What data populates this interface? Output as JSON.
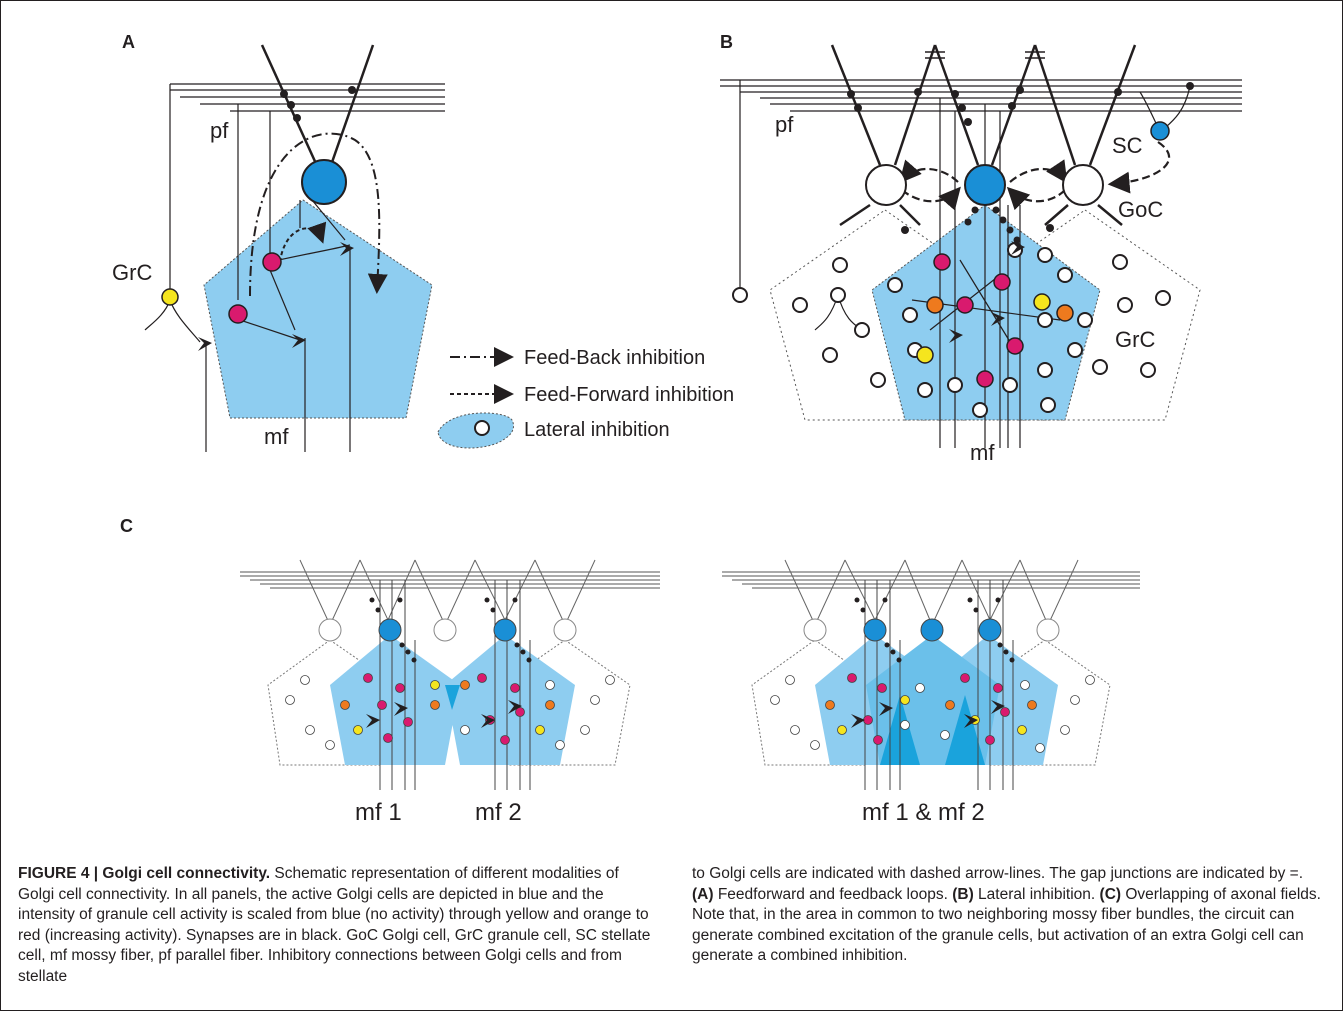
{
  "figure": {
    "panels": [
      "A",
      "B",
      "C"
    ],
    "panel_a": {
      "pf": "pf",
      "grc": "GrC",
      "mf": "mf"
    },
    "panel_b": {
      "pf": "pf",
      "sc": "SC",
      "goc": "GoC",
      "grc": "GrC",
      "mf": "mf"
    },
    "panel_c": {
      "left_label_1": "mf 1",
      "left_label_2": "mf 2",
      "right_label": "mf 1 & mf 2"
    },
    "legend": {
      "feedback": "Feed-Back inhibition",
      "feedforward": "Feed-Forward inhibition",
      "lateral": "Lateral inhibition"
    },
    "colors": {
      "active_golgi": "#1a8fd6",
      "axonal_field": "#8ecdf0",
      "overlap_field": "#1aa3dc",
      "granule_red": "#d91a6e",
      "granule_orange": "#ee7a1e",
      "granule_yellow": "#f5e51e",
      "synapse": "#231f20"
    }
  },
  "caption": {
    "col1_p1_bold": "FIGURE 4 | Golgi cell connectivity.",
    "col1_p1_rest": " Schematic representation of different modalities of Golgi cell connectivity. In all panels, the active Golgi cells are depicted in blue and the intensity of granule cell activity is scaled from blue (no activity) through yellow and orange to red (increasing activity). Synapses are in black.",
    "col1_abbrev": " GoC Golgi cell, GrC granule cell, SC stellate cell, mf mossy fiber, pf parallel fiber. Inhibitory connections between Golgi cells and from stellate",
    "col2_p1": "to Golgi cells are indicated with dashed arrow-lines. The gap junctions are indicated by =.",
    "col2_a_bold": " (A)",
    "col2_a": " Feedforward and feedback loops.",
    "col2_b_bold": " (B)",
    "col2_b": " Lateral inhibition.",
    "col2_c_bold": " (C)",
    "col2_c": " Overlapping of axonal fields. Note that, in the area in common to two neighboring mossy fiber bundles, the circuit can generate combined excitation of the granule cells, but activation of an extra Golgi cell can generate a combined inhibition."
  }
}
